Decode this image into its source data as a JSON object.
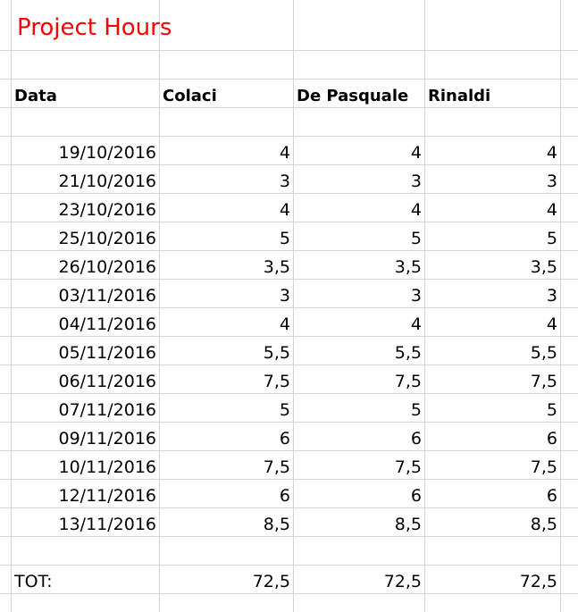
{
  "title": "Project Hours",
  "columns": [
    "Data",
    "Colaci",
    "De Pasquale",
    "Rinaldi"
  ],
  "rows": [
    {
      "date": "19/10/2016",
      "colaci": "4",
      "depasquale": "4",
      "rinaldi": "4"
    },
    {
      "date": "21/10/2016",
      "colaci": "3",
      "depasquale": "3",
      "rinaldi": "3"
    },
    {
      "date": "23/10/2016",
      "colaci": "4",
      "depasquale": "4",
      "rinaldi": "4"
    },
    {
      "date": "25/10/2016",
      "colaci": "5",
      "depasquale": "5",
      "rinaldi": "5"
    },
    {
      "date": "26/10/2016",
      "colaci": "3,5",
      "depasquale": "3,5",
      "rinaldi": "3,5"
    },
    {
      "date": "03/11/2016",
      "colaci": "3",
      "depasquale": "3",
      "rinaldi": "3"
    },
    {
      "date": "04/11/2016",
      "colaci": "4",
      "depasquale": "4",
      "rinaldi": "4"
    },
    {
      "date": "05/11/2016",
      "colaci": "5,5",
      "depasquale": "5,5",
      "rinaldi": "5,5"
    },
    {
      "date": "06/11/2016",
      "colaci": "7,5",
      "depasquale": "7,5",
      "rinaldi": "7,5"
    },
    {
      "date": "07/11/2016",
      "colaci": "5",
      "depasquale": "5",
      "rinaldi": "5"
    },
    {
      "date": "09/11/2016",
      "colaci": "6",
      "depasquale": "6",
      "rinaldi": "6"
    },
    {
      "date": "10/11/2016",
      "colaci": "7,5",
      "depasquale": "7,5",
      "rinaldi": "7,5"
    },
    {
      "date": "12/11/2016",
      "colaci": "6",
      "depasquale": "6",
      "rinaldi": "6"
    },
    {
      "date": "13/11/2016",
      "colaci": "8,5",
      "depasquale": "8,5",
      "rinaldi": "8,5"
    }
  ],
  "total": {
    "label": "TOT:",
    "colaci": "72,5",
    "depasquale": "72,5",
    "rinaldi": "72,5"
  },
  "colors": {
    "title": "#ff0000",
    "gridline": "#d4d4d4"
  }
}
